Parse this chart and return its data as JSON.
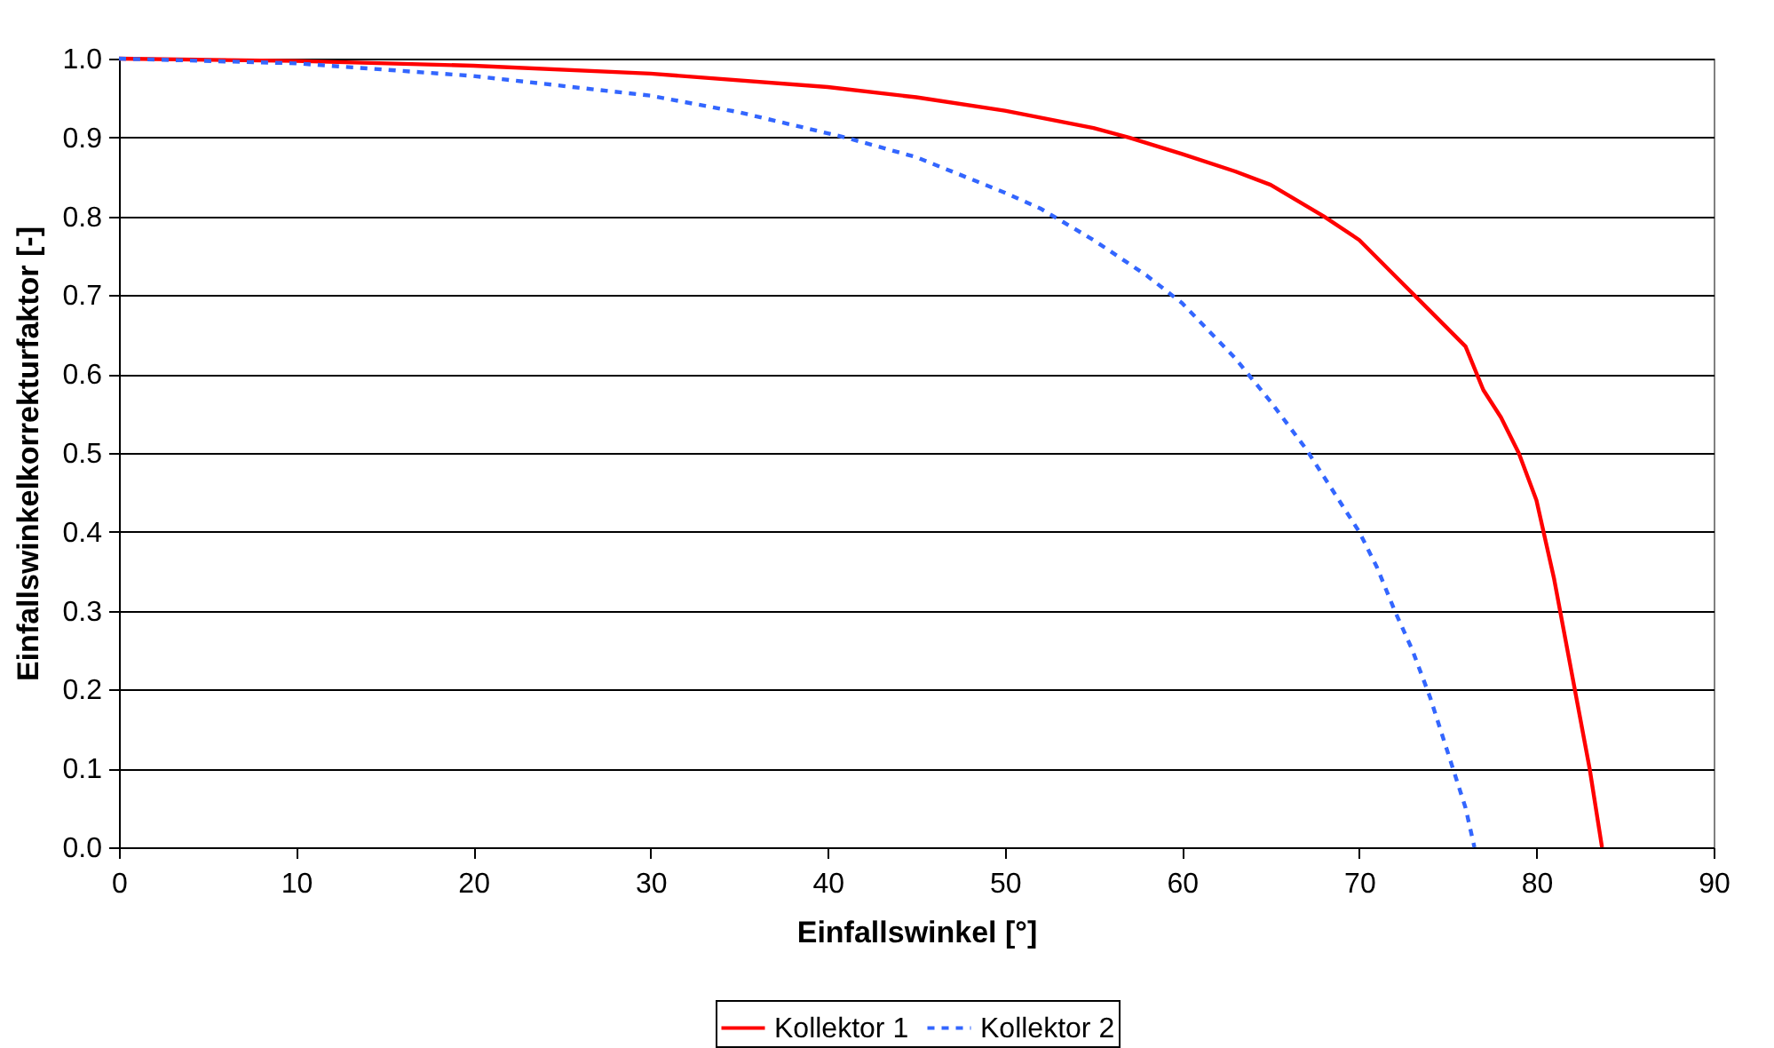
{
  "chart_data": {
    "type": "line",
    "xlabel": "Einfallswinkel [°]",
    "ylabel": "Einfallswinkelkorrekturfaktor [-]",
    "xlim": [
      0,
      90
    ],
    "xticks": [
      0,
      10,
      20,
      30,
      40,
      50,
      60,
      70,
      80,
      90
    ],
    "ylim": [
      0,
      1
    ],
    "yticks": [
      {
        "value": 0,
        "label": "0.0"
      },
      {
        "value": 0.1,
        "label": "0.1"
      },
      {
        "value": 0.2,
        "label": "0.2"
      },
      {
        "value": 0.3,
        "label": "0.3"
      },
      {
        "value": 0.4,
        "label": "0.4"
      },
      {
        "value": 0.5,
        "label": "0.5"
      },
      {
        "value": 0.6,
        "label": "0.6"
      },
      {
        "value": 0.7,
        "label": "0.7"
      },
      {
        "value": 0.8,
        "label": "0.8"
      },
      {
        "value": 0.9,
        "label": "0.9"
      },
      {
        "value": 1,
        "label": "1.0"
      }
    ],
    "grid": "y",
    "legend": "bottom",
    "marker": "none",
    "series": [
      {
        "name": "Kollektor 1",
        "color": "#ff0000",
        "line_style": "solid",
        "x": [
          0,
          10,
          20,
          30,
          40,
          45,
          50,
          55,
          57,
          60,
          63,
          65,
          68,
          70,
          72,
          74,
          76,
          77,
          78,
          79,
          80,
          81,
          82,
          83,
          83.7
        ],
        "values": [
          1,
          0.997,
          0.991,
          0.981,
          0.964,
          0.951,
          0.934,
          0.912,
          0.9,
          0.879,
          0.857,
          0.84,
          0.8,
          0.77,
          0.725,
          0.68,
          0.635,
          0.58,
          0.545,
          0.5,
          0.44,
          0.34,
          0.22,
          0.1,
          0
        ]
      },
      {
        "name": "Kollektor 2",
        "color": "#3366ff",
        "line_style": "dashed",
        "x": [
          0,
          10,
          20,
          30,
          35,
          41,
          45,
          50,
          52,
          55,
          58,
          60,
          63,
          65,
          67,
          68,
          70,
          71,
          72,
          73,
          74,
          75,
          76,
          76.5
        ],
        "values": [
          1,
          0.994,
          0.978,
          0.953,
          0.932,
          0.9,
          0.875,
          0.83,
          0.81,
          0.77,
          0.725,
          0.69,
          0.62,
          0.565,
          0.505,
          0.47,
          0.4,
          0.355,
          0.3,
          0.25,
          0.19,
          0.12,
          0.05,
          0
        ]
      }
    ]
  }
}
